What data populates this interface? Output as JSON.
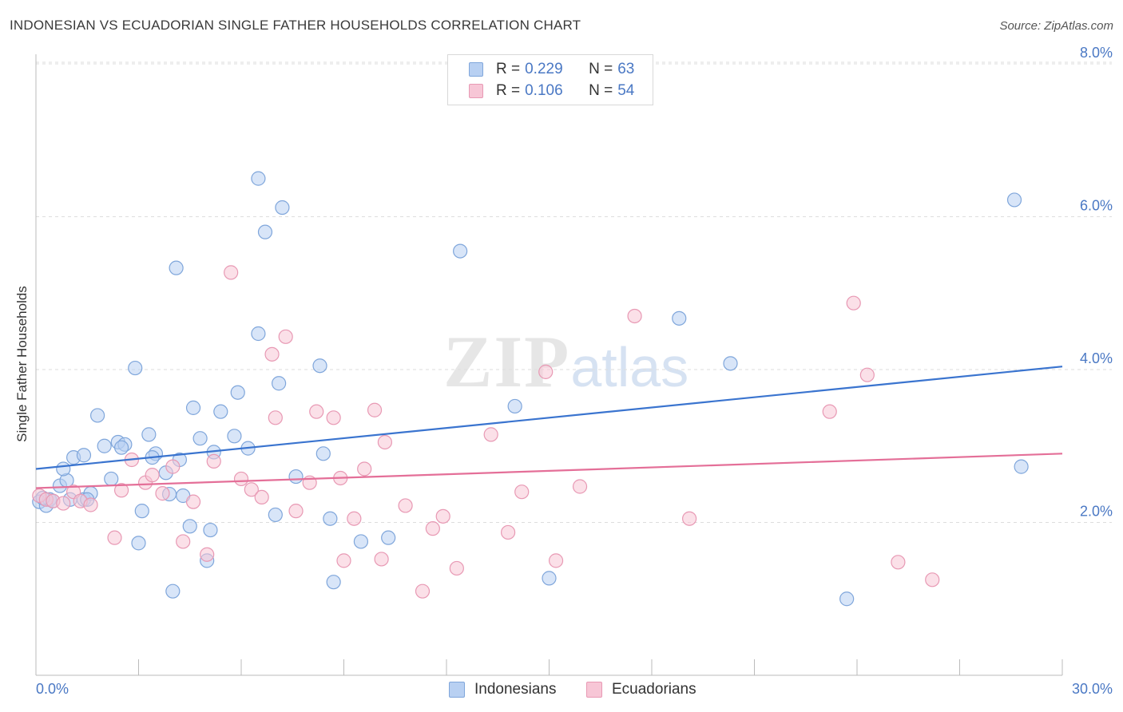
{
  "title": "INDONESIAN VS ECUADORIAN SINGLE FATHER HOUSEHOLDS CORRELATION CHART",
  "source": "Source: ZipAtlas.com",
  "watermark": {
    "zip": "ZIP",
    "atlas": "atlas"
  },
  "legend_top": [
    {
      "r_label": "R = ",
      "r_value": "0.229",
      "n_label": "N = ",
      "n_value": "63"
    },
    {
      "r_label": "R = ",
      "r_value": "0.106",
      "n_label": "N = ",
      "n_value": "54"
    }
  ],
  "legend_bottom": [
    "Indonesians",
    "Ecuadorians"
  ],
  "colors": {
    "blue_fill": "#b8d0f2",
    "blue_stroke": "#7fa6db",
    "blue_line": "#3a74cf",
    "pink_fill": "#f7c6d6",
    "pink_stroke": "#e899b4",
    "pink_line": "#e46f98",
    "axis_text": "#4a78c4",
    "grid": "#dddddd"
  },
  "chart_data": {
    "type": "scatter",
    "title": "INDONESIAN VS ECUADORIAN SINGLE FATHER HOUSEHOLDS CORRELATION CHART",
    "xlabel": "",
    "ylabel": "Single Father Households",
    "xlim": [
      0,
      30
    ],
    "ylim": [
      0,
      8.3
    ],
    "x_tick_labels": [
      "0.0%",
      "30.0%"
    ],
    "y_ticks": [
      2,
      4,
      6,
      8
    ],
    "y_tick_labels": [
      "2.0%",
      "4.0%",
      "6.0%",
      "8.0%"
    ],
    "grid": "horizontal dashed",
    "legend_position": "top-center and bottom",
    "series": [
      {
        "name": "Indonesians",
        "r": 0.229,
        "n": 63,
        "trend": [
          [
            0,
            2.7
          ],
          [
            30,
            4.04
          ]
        ],
        "points": [
          [
            0.1,
            2.27
          ],
          [
            0.3,
            2.22
          ],
          [
            0.4,
            2.3
          ],
          [
            0.5,
            2.28
          ],
          [
            0.7,
            2.48
          ],
          [
            0.9,
            2.55
          ],
          [
            1.1,
            2.85
          ],
          [
            1.4,
            2.3
          ],
          [
            1.6,
            2.38
          ],
          [
            1.8,
            3.4
          ],
          [
            2.0,
            3.0
          ],
          [
            2.2,
            2.57
          ],
          [
            2.4,
            3.05
          ],
          [
            2.9,
            4.02
          ],
          [
            3.1,
            2.15
          ],
          [
            3.3,
            3.15
          ],
          [
            3.5,
            2.9
          ],
          [
            3.8,
            2.65
          ],
          [
            4.1,
            5.33
          ],
          [
            4.3,
            2.35
          ],
          [
            4.6,
            3.5
          ],
          [
            4.8,
            3.1
          ],
          [
            5.2,
            2.92
          ],
          [
            5.4,
            3.45
          ],
          [
            5.8,
            3.13
          ],
          [
            5.9,
            3.7
          ],
          [
            6.2,
            2.97
          ],
          [
            6.5,
            4.47
          ],
          [
            6.5,
            6.5
          ],
          [
            6.7,
            5.8
          ],
          [
            7.1,
            3.82
          ],
          [
            7.2,
            6.12
          ],
          [
            7.6,
            2.6
          ],
          [
            8.3,
            4.05
          ],
          [
            8.4,
            2.9
          ],
          [
            8.6,
            2.05
          ],
          [
            8.7,
            1.22
          ],
          [
            9.5,
            1.75
          ],
          [
            10.3,
            1.8
          ],
          [
            12.4,
            5.55
          ],
          [
            14.0,
            3.52
          ],
          [
            15.0,
            1.27
          ],
          [
            18.8,
            4.67
          ],
          [
            20.3,
            4.08
          ],
          [
            23.7,
            1.0
          ],
          [
            28.6,
            6.22
          ],
          [
            28.8,
            2.73
          ],
          [
            1.4,
            2.88
          ],
          [
            2.6,
            3.02
          ],
          [
            3.4,
            2.85
          ],
          [
            4.2,
            2.82
          ],
          [
            1.0,
            2.3
          ],
          [
            2.5,
            2.98
          ],
          [
            3.0,
            1.73
          ],
          [
            3.9,
            2.37
          ],
          [
            4.5,
            1.95
          ],
          [
            4.0,
            1.1
          ],
          [
            5.1,
            1.9
          ],
          [
            5.0,
            1.5
          ],
          [
            7.0,
            2.1
          ],
          [
            0.2,
            2.32
          ],
          [
            0.8,
            2.7
          ],
          [
            1.5,
            2.3
          ]
        ]
      },
      {
        "name": "Ecuadorians",
        "r": 0.106,
        "n": 54,
        "trend": [
          [
            0,
            2.45
          ],
          [
            30,
            2.9
          ]
        ],
        "points": [
          [
            0.1,
            2.35
          ],
          [
            0.3,
            2.3
          ],
          [
            0.5,
            2.28
          ],
          [
            0.8,
            2.25
          ],
          [
            1.1,
            2.4
          ],
          [
            1.3,
            2.28
          ],
          [
            1.6,
            2.23
          ],
          [
            2.3,
            1.8
          ],
          [
            2.5,
            2.42
          ],
          [
            2.8,
            2.82
          ],
          [
            3.2,
            2.52
          ],
          [
            3.4,
            2.62
          ],
          [
            3.7,
            2.38
          ],
          [
            4.0,
            2.73
          ],
          [
            4.3,
            1.75
          ],
          [
            4.6,
            2.27
          ],
          [
            5.0,
            1.58
          ],
          [
            5.2,
            2.8
          ],
          [
            5.7,
            5.27
          ],
          [
            6.0,
            2.57
          ],
          [
            6.3,
            2.43
          ],
          [
            6.6,
            2.33
          ],
          [
            6.9,
            4.2
          ],
          [
            7.0,
            3.37
          ],
          [
            7.3,
            4.43
          ],
          [
            7.6,
            2.15
          ],
          [
            8.0,
            2.52
          ],
          [
            8.2,
            3.45
          ],
          [
            8.7,
            3.37
          ],
          [
            8.9,
            2.58
          ],
          [
            9.0,
            1.5
          ],
          [
            9.3,
            2.05
          ],
          [
            9.6,
            2.7
          ],
          [
            9.9,
            3.47
          ],
          [
            10.1,
            1.52
          ],
          [
            10.2,
            3.05
          ],
          [
            10.8,
            2.22
          ],
          [
            11.3,
            1.1
          ],
          [
            11.6,
            1.92
          ],
          [
            11.9,
            2.08
          ],
          [
            12.3,
            1.4
          ],
          [
            13.3,
            3.15
          ],
          [
            13.8,
            1.87
          ],
          [
            14.2,
            2.4
          ],
          [
            14.9,
            3.97
          ],
          [
            15.2,
            1.5
          ],
          [
            15.9,
            2.47
          ],
          [
            17.5,
            4.7
          ],
          [
            19.1,
            2.05
          ],
          [
            23.2,
            3.45
          ],
          [
            23.9,
            4.87
          ],
          [
            24.3,
            3.93
          ],
          [
            25.2,
            1.48
          ],
          [
            26.2,
            1.25
          ]
        ]
      }
    ]
  }
}
